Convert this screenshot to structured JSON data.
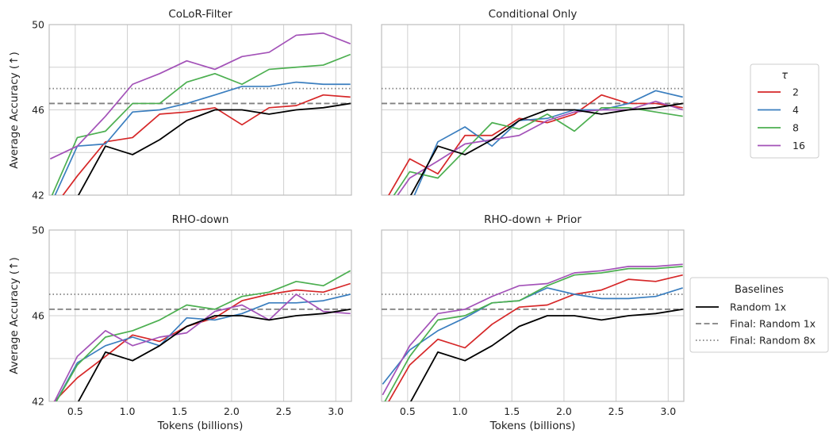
{
  "figure": {
    "ylabel": "Average Accuracy (↑)",
    "xlabel": "Tokens (billions)"
  },
  "colors": {
    "tau_2": "#d62728",
    "tau_4": "#3a7ebf",
    "tau_8": "#4caf50",
    "tau_16": "#a352b8",
    "random_1x": "#000000",
    "final_random": "#808080",
    "grid": "#d0d0d0",
    "frame": "#bdbdbd"
  },
  "legends": {
    "tau": {
      "title": "τ",
      "entries": [
        {
          "label": "2",
          "color": "#d62728"
        },
        {
          "label": "4",
          "color": "#3a7ebf"
        },
        {
          "label": "8",
          "color": "#4caf50"
        },
        {
          "label": "16",
          "color": "#a352b8"
        }
      ]
    },
    "baselines": {
      "title": "Baselines",
      "entries": [
        {
          "label": "Random 1x",
          "color": "#000000",
          "style": "solid"
        },
        {
          "label": "Final: Random 1x",
          "color": "#808080",
          "style": "dashed"
        },
        {
          "label": "Final: Random 8x",
          "color": "#808080",
          "style": "dotted"
        }
      ]
    }
  },
  "chart_data": [
    {
      "type": "line",
      "title": "CoLoR-Filter",
      "xlabel": "",
      "ylabel": "Average Accuracy (↑)",
      "xlim": [
        0.25,
        3.15
      ],
      "ylim": [
        42,
        50
      ],
      "xticks": [
        "0.5",
        "1.0",
        "1.5",
        "2.0",
        "2.5",
        "3.0"
      ],
      "yticks": [
        "42",
        "46",
        "50"
      ],
      "x": [
        0.26,
        0.52,
        0.79,
        1.05,
        1.31,
        1.57,
        1.84,
        2.1,
        2.36,
        2.62,
        2.88,
        3.14
      ],
      "series": [
        {
          "name": "2",
          "values": [
            41.2,
            42.9,
            44.5,
            44.7,
            45.8,
            45.9,
            46.1,
            45.3,
            46.1,
            46.2,
            46.7,
            46.6
          ]
        },
        {
          "name": "4",
          "values": [
            41.5,
            44.3,
            44.4,
            45.9,
            46.0,
            46.3,
            46.7,
            47.1,
            47.1,
            47.3,
            47.2,
            47.2
          ]
        },
        {
          "name": "8",
          "values": [
            41.8,
            44.7,
            45.0,
            46.3,
            46.3,
            47.3,
            47.7,
            47.2,
            47.9,
            48.0,
            48.1,
            48.6
          ]
        },
        {
          "name": "16",
          "values": [
            43.7,
            44.3,
            45.7,
            47.2,
            47.7,
            48.3,
            47.9,
            48.5,
            48.7,
            49.5,
            49.6,
            49.1
          ]
        }
      ],
      "baselines": {
        "random_1x": [
          null,
          41.9,
          44.3,
          43.9,
          44.6,
          45.5,
          46.0,
          46.0,
          45.8,
          46.0,
          46.1,
          46.3
        ],
        "final_random_1x": 46.3,
        "final_random_8x": 47.0
      }
    },
    {
      "type": "line",
      "title": "Conditional Only",
      "xlabel": "",
      "ylabel": "",
      "xlim": [
        0.25,
        3.15
      ],
      "ylim": [
        42,
        50
      ],
      "xticks": [
        "0.5",
        "1.0",
        "1.5",
        "2.0",
        "2.5",
        "3.0"
      ],
      "yticks": [
        "42",
        "46",
        "50"
      ],
      "x": [
        0.26,
        0.52,
        0.79,
        1.05,
        1.31,
        1.57,
        1.84,
        2.1,
        2.36,
        2.62,
        2.88,
        3.14
      ],
      "series": [
        {
          "name": "2",
          "values": [
            41.5,
            43.7,
            43.0,
            44.8,
            44.8,
            45.6,
            45.4,
            45.8,
            46.7,
            46.3,
            46.3,
            46.1
          ]
        },
        {
          "name": "4",
          "values": [
            41.2,
            41.5,
            44.5,
            45.2,
            44.3,
            45.5,
            45.6,
            46.0,
            46.0,
            46.3,
            46.9,
            46.6
          ]
        },
        {
          "name": "8",
          "values": [
            41.2,
            43.1,
            42.8,
            44.1,
            45.4,
            45.1,
            45.8,
            45.0,
            46.1,
            46.1,
            45.9,
            45.7
          ]
        },
        {
          "name": "16",
          "values": [
            41.0,
            42.8,
            43.6,
            44.4,
            44.6,
            44.8,
            45.5,
            45.9,
            46.0,
            46.0,
            46.4,
            46.0
          ]
        }
      ],
      "baselines": {
        "random_1x": [
          null,
          41.9,
          44.3,
          43.9,
          44.6,
          45.5,
          46.0,
          46.0,
          45.8,
          46.0,
          46.1,
          46.3
        ],
        "final_random_1x": 46.3,
        "final_random_8x": 47.0
      }
    },
    {
      "type": "line",
      "title": "RHO-down",
      "xlabel": "Tokens (billions)",
      "ylabel": "Average Accuracy (↑)",
      "xlim": [
        0.25,
        3.15
      ],
      "ylim": [
        42,
        50
      ],
      "xticks": [
        "0.5",
        "1.0",
        "1.5",
        "2.0",
        "2.5",
        "3.0"
      ],
      "yticks": [
        "42",
        "46",
        "50"
      ],
      "x": [
        0.26,
        0.52,
        0.79,
        1.05,
        1.31,
        1.57,
        1.84,
        2.1,
        2.36,
        2.62,
        2.88,
        3.14
      ],
      "series": [
        {
          "name": "2",
          "values": [
            41.8,
            43.1,
            44.1,
            45.1,
            44.8,
            45.5,
            45.9,
            46.7,
            47.0,
            47.2,
            47.1,
            47.5
          ]
        },
        {
          "name": "4",
          "values": [
            41.5,
            43.8,
            44.6,
            45.0,
            44.6,
            45.9,
            45.8,
            46.1,
            46.6,
            46.6,
            46.7,
            47.0
          ]
        },
        {
          "name": "8",
          "values": [
            41.5,
            43.7,
            45.0,
            45.3,
            45.8,
            46.5,
            46.3,
            46.9,
            47.1,
            47.6,
            47.4,
            48.1
          ]
        },
        {
          "name": "16",
          "values": [
            41.6,
            44.1,
            45.3,
            44.6,
            45.0,
            45.2,
            46.2,
            46.5,
            45.8,
            47.0,
            46.2,
            46.1
          ]
        }
      ],
      "baselines": {
        "random_1x": [
          null,
          41.9,
          44.3,
          43.9,
          44.6,
          45.5,
          46.0,
          46.0,
          45.8,
          46.0,
          46.1,
          46.3
        ],
        "final_random_1x": 46.3,
        "final_random_8x": 47.0
      }
    },
    {
      "type": "line",
      "title": "RHO-down + Prior",
      "xlabel": "Tokens (billions)",
      "ylabel": "",
      "xlim": [
        0.25,
        3.15
      ],
      "ylim": [
        42,
        50
      ],
      "xticks": [
        "0.5",
        "1.0",
        "1.5",
        "2.0",
        "2.5",
        "3.0"
      ],
      "yticks": [
        "42",
        "46",
        "50"
      ],
      "x": [
        0.26,
        0.52,
        0.79,
        1.05,
        1.31,
        1.57,
        1.84,
        2.1,
        2.36,
        2.62,
        2.88,
        3.14
      ],
      "series": [
        {
          "name": "2",
          "values": [
            41.5,
            43.7,
            44.9,
            44.5,
            45.6,
            46.4,
            46.5,
            47.0,
            47.2,
            47.7,
            47.6,
            47.9
          ]
        },
        {
          "name": "4",
          "values": [
            42.8,
            44.4,
            45.3,
            45.9,
            46.6,
            46.7,
            47.3,
            47.0,
            46.8,
            46.8,
            46.9,
            47.3
          ]
        },
        {
          "name": "8",
          "values": [
            41.8,
            44.1,
            45.8,
            46.0,
            46.6,
            46.7,
            47.4,
            47.9,
            48.0,
            48.2,
            48.2,
            48.3
          ]
        },
        {
          "name": "16",
          "values": [
            42.3,
            44.6,
            46.1,
            46.3,
            46.9,
            47.4,
            47.5,
            48.0,
            48.1,
            48.3,
            48.3,
            48.4
          ]
        }
      ],
      "baselines": {
        "random_1x": [
          null,
          41.9,
          44.3,
          43.9,
          44.6,
          45.5,
          46.0,
          46.0,
          45.8,
          46.0,
          46.1,
          46.3
        ],
        "final_random_1x": 46.3,
        "final_random_8x": 47.0
      }
    }
  ]
}
